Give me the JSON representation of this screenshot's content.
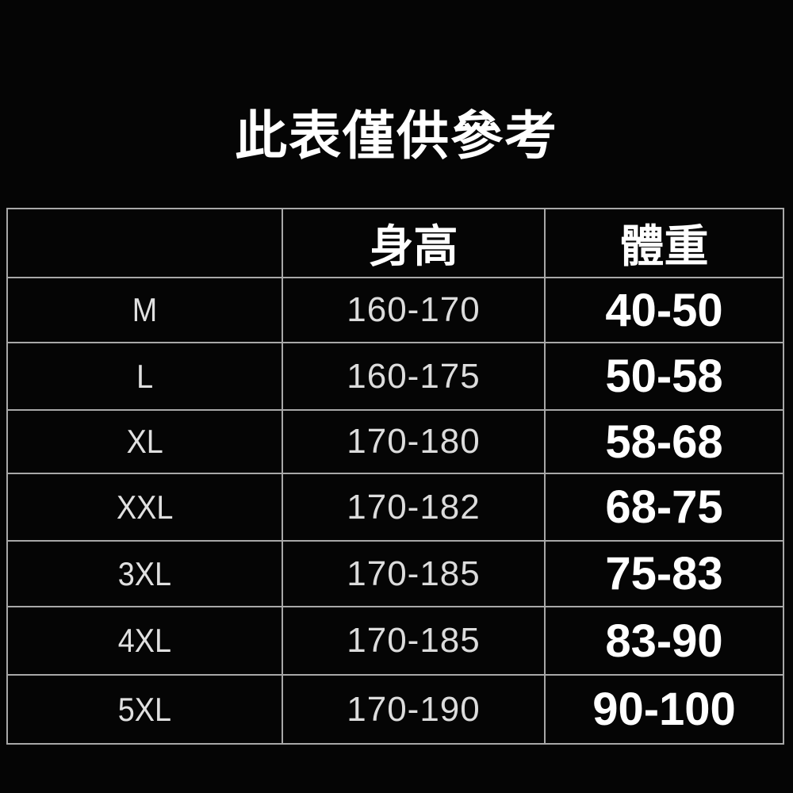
{
  "title": "此表僅供參考",
  "table": {
    "headers": [
      "",
      "身高",
      "體重"
    ],
    "rows": [
      {
        "size": "M",
        "height": "160-170",
        "weight": "40-50"
      },
      {
        "size": "L",
        "height": "160-175",
        "weight": "50-58"
      },
      {
        "size": "XL",
        "height": "170-180",
        "weight": "58-68"
      },
      {
        "size": "XXL",
        "height": "170-182",
        "weight": "68-75"
      },
      {
        "size": "3XL",
        "height": "170-185",
        "weight": "75-83"
      },
      {
        "size": "4XL",
        "height": "170-185",
        "weight": "83-90"
      },
      {
        "size": "5XL",
        "height": "170-190",
        "weight": "90-100"
      }
    ]
  }
}
